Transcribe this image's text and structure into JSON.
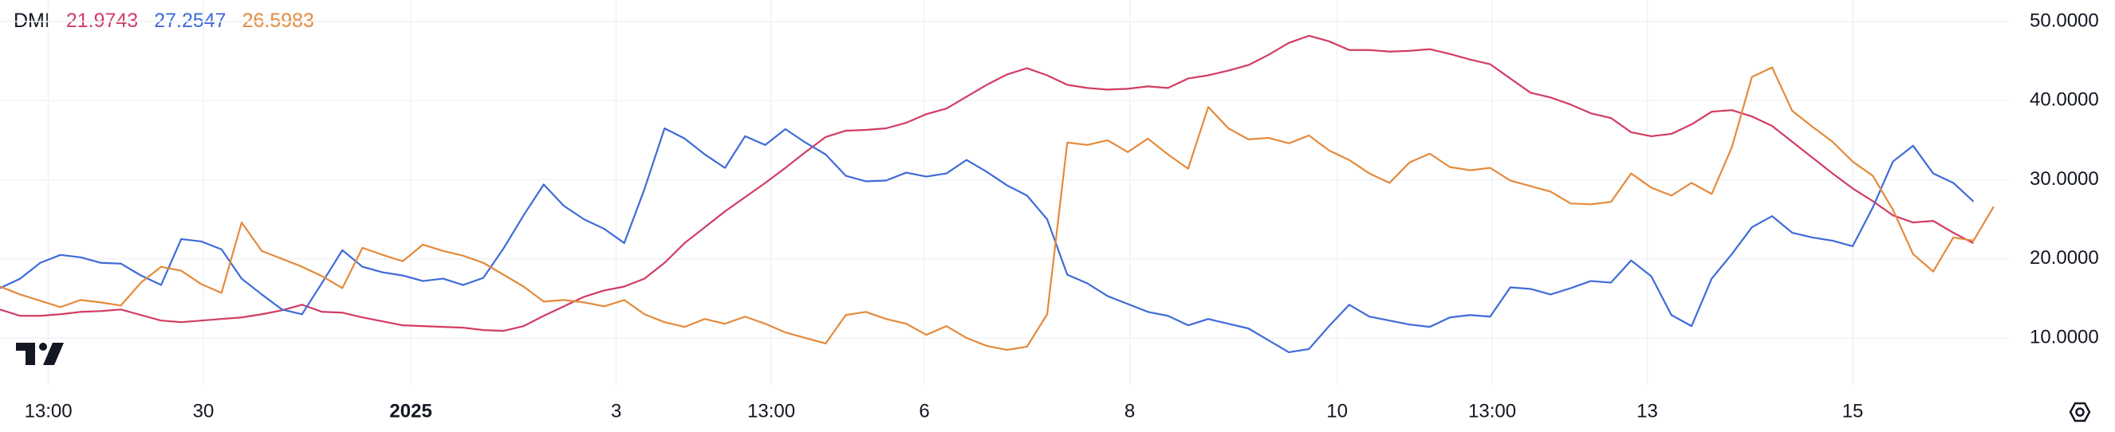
{
  "chart_data": {
    "type": "line",
    "title": "DMI",
    "grid": true,
    "xlim": [
      0,
      99.8
    ],
    "ylim": [
      4.16,
      52.72
    ],
    "xticks": [
      {
        "value": 2.4,
        "label": "13:00"
      },
      {
        "value": 10.1,
        "label": "30"
      },
      {
        "value": 20.4,
        "label": "2025",
        "bold": true
      },
      {
        "value": 30.6,
        "label": "3"
      },
      {
        "value": 38.3,
        "label": "13:00"
      },
      {
        "value": 45.9,
        "label": "6"
      },
      {
        "value": 56.1,
        "label": "8"
      },
      {
        "value": 66.4,
        "label": "10"
      },
      {
        "value": 74.1,
        "label": "13:00"
      },
      {
        "value": 81.8,
        "label": "13"
      },
      {
        "value": 92.0,
        "label": "15"
      }
    ],
    "yticks": [
      {
        "value": 10,
        "label": "10.0000"
      },
      {
        "value": 20,
        "label": "20.0000"
      },
      {
        "value": 30,
        "label": "30.0000"
      },
      {
        "value": 40,
        "label": "40.0000"
      },
      {
        "value": 50,
        "label": "50.0000"
      }
    ],
    "series": [
      {
        "color": "#d23c63",
        "current": 21.9743,
        "values": [
          13.6,
          12.8,
          12.8,
          13.0,
          13.3,
          13.4,
          13.6,
          12.9,
          12.2,
          12.0,
          12.2,
          12.4,
          12.6,
          13.0,
          13.5,
          14.2,
          13.3,
          13.2,
          12.6,
          12.1,
          11.6,
          11.5,
          11.4,
          11.3,
          11.0,
          10.9,
          11.5,
          12.8,
          14.0,
          15.2,
          16.0,
          16.5,
          17.5,
          19.5,
          22.0,
          24.0,
          26.0,
          27.8,
          29.6,
          31.5,
          33.5,
          35.4,
          36.2,
          36.3,
          36.5,
          37.2,
          38.3,
          39.0,
          40.5,
          42.0,
          43.3,
          44.1,
          43.2,
          42.0,
          41.6,
          41.4,
          41.5,
          41.8,
          41.6,
          42.8,
          43.2,
          43.8,
          44.5,
          45.8,
          47.3,
          48.2,
          47.5,
          46.4,
          46.4,
          46.2,
          46.3,
          46.5,
          45.9,
          45.2,
          44.6,
          42.8,
          41.0,
          40.4,
          39.5,
          38.4,
          37.8,
          36.0,
          35.5,
          35.8,
          37.0,
          38.6,
          38.8,
          38.0,
          36.8,
          34.8,
          32.8,
          30.8,
          28.9,
          27.3,
          25.5,
          24.6,
          24.8,
          23.3,
          21.9743
        ]
      },
      {
        "color": "#3f6bd8",
        "current": 27.2547,
        "values": [
          16.3,
          17.5,
          19.5,
          20.5,
          20.2,
          19.5,
          19.4,
          17.9,
          16.7,
          22.5,
          22.2,
          21.2,
          17.5,
          15.5,
          13.6,
          13.0,
          17.0,
          21.1,
          19.0,
          18.3,
          17.9,
          17.2,
          17.5,
          16.7,
          17.6,
          21.3,
          25.5,
          29.4,
          26.7,
          25.0,
          23.8,
          22.0,
          28.8,
          36.5,
          35.2,
          33.2,
          31.5,
          35.5,
          34.4,
          36.4,
          34.7,
          33.2,
          30.5,
          29.8,
          29.9,
          30.9,
          30.4,
          30.8,
          32.5,
          31.0,
          29.3,
          28.0,
          25.0,
          18.0,
          16.9,
          15.3,
          14.3,
          13.3,
          12.8,
          11.6,
          12.4,
          11.8,
          11.2,
          9.7,
          8.2,
          8.6,
          11.5,
          14.2,
          12.7,
          12.2,
          11.7,
          11.4,
          12.6,
          12.9,
          12.7,
          16.4,
          16.2,
          15.5,
          16.3,
          17.2,
          17.0,
          19.8,
          17.8,
          12.9,
          11.5,
          17.5,
          20.6,
          24.0,
          25.4,
          23.3,
          22.7,
          22.3,
          21.6,
          26.5,
          32.3,
          34.3,
          30.8,
          29.6,
          27.2547
        ]
      },
      {
        "color": "#e48a3c",
        "current": 26.5983,
        "values": [
          16.5,
          15.5,
          14.7,
          13.9,
          14.8,
          14.5,
          14.1,
          17.0,
          19.0,
          18.5,
          16.8,
          15.7,
          24.6,
          21.0,
          20.0,
          19.0,
          17.8,
          16.3,
          21.4,
          20.5,
          19.7,
          21.8,
          21.0,
          20.4,
          19.5,
          18.0,
          16.5,
          14.6,
          14.8,
          14.5,
          14.0,
          14.8,
          13.0,
          12.0,
          11.4,
          12.4,
          11.8,
          12.7,
          11.8,
          10.7,
          10.0,
          9.3,
          12.9,
          13.3,
          12.4,
          11.8,
          10.4,
          11.5,
          10.0,
          9.0,
          8.5,
          8.9,
          13.0,
          34.7,
          34.4,
          35.0,
          33.5,
          35.2,
          33.2,
          31.4,
          39.2,
          36.5,
          35.1,
          35.3,
          34.6,
          35.6,
          33.7,
          32.5,
          30.8,
          29.6,
          32.2,
          33.3,
          31.6,
          31.2,
          31.5,
          29.9,
          29.2,
          28.5,
          27.0,
          26.9,
          27.2,
          30.8,
          29.0,
          28.0,
          29.6,
          28.2,
          34.1,
          43.0,
          44.2,
          38.7,
          36.7,
          34.8,
          32.3,
          30.5,
          26.2,
          20.6,
          18.4,
          22.7,
          22.3,
          26.5983
        ]
      }
    ]
  }
}
